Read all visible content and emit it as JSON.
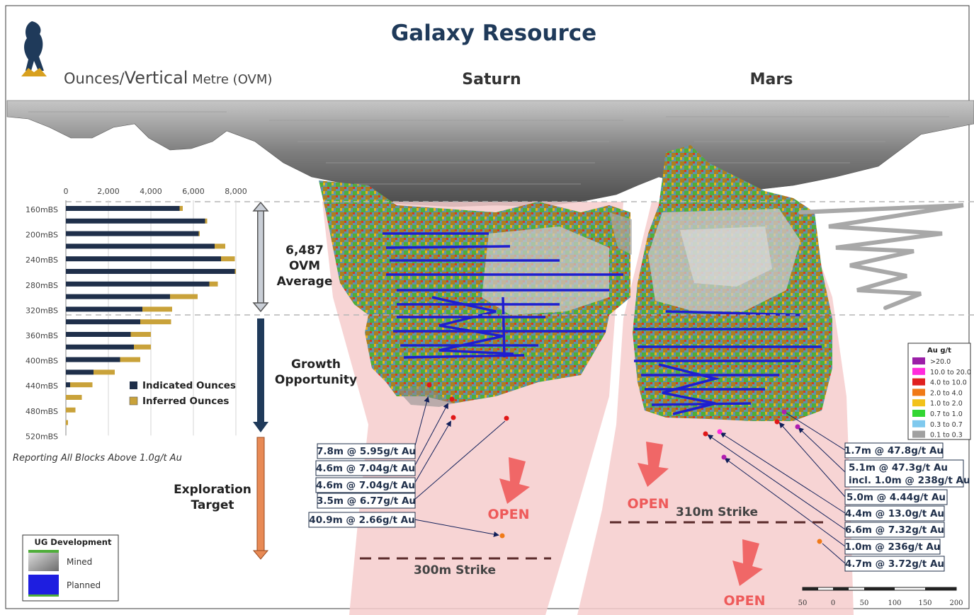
{
  "header": {
    "title": "Galaxy Resource",
    "subtitle_part1": "Ounces/",
    "subtitle_part2": "Vertical",
    "subtitle_part3": " Metre (OVM)",
    "deposit_left": "Saturn",
    "deposit_right": "Mars"
  },
  "chart_data": {
    "type": "bar",
    "orientation": "horizontal",
    "stacked": true,
    "xlim": [
      0,
      8000
    ],
    "xticks": [
      "0",
      "2,000",
      "4,000",
      "6,000",
      "8,000"
    ],
    "depth_labels": [
      "160mBS",
      "200mBS",
      "240mBS",
      "280mBS",
      "320mBS",
      "360mBS",
      "400mBS",
      "440mBS",
      "480mBS",
      "520mBS"
    ],
    "series": [
      {
        "name": "Indicated Ounces",
        "color": "#1f2f4a",
        "values": [
          5350,
          6550,
          6250,
          7000,
          7300,
          7950,
          6750,
          4900,
          3600,
          3500,
          3050,
          3200,
          2550,
          1300,
          200,
          0,
          0,
          0
        ]
      },
      {
        "name": "Inferred Ounces",
        "color": "#c9a23a",
        "values": [
          150,
          100,
          50,
          500,
          650,
          50,
          400,
          1300,
          1400,
          1450,
          950,
          800,
          950,
          1000,
          1050,
          750,
          450,
          100
        ]
      }
    ],
    "footnote": "Reporting All Blocks Above 1.0g/t Au"
  },
  "annotations": {
    "ovm_value": "6,487",
    "ovm_unit": "OVM",
    "ovm_avg": "Average",
    "growth_1": "Growth",
    "growth_2": "Opportunity",
    "explore_1": "Exploration",
    "explore_2": "Target",
    "open_label": "OPEN",
    "strike_saturn": "300m Strike",
    "strike_mars": "310m Strike"
  },
  "saturn_intercepts": [
    "7.8m @ 5.95g/t Au",
    "4.6m @ 7.04g/t Au",
    "4.6m @ 7.04g/t Au",
    "3.5m @ 6.77g/t Au",
    "40.9m @ 2.66g/t Au"
  ],
  "mars_intercepts": {
    "i1": "1.7m @ 47.8g/t Au",
    "i2a": "5.1m @ 47.3g/t Au",
    "i2b": "incl. 1.0m @ 238g/t Au",
    "i3": "5.0m @ 4.44g/t Au",
    "i4": "4.4m @ 13.0g/t Au",
    "i5": "6.6m @ 7.32g/t Au",
    "i6": "1.0m @ 236g/t Au",
    "i7": "4.7m @ 3.72g/t Au"
  },
  "grade_legend": {
    "title": "Au g/t",
    "items": [
      {
        "label": ">20.0",
        "color": "#9b1fa8"
      },
      {
        "label": "10.0 to 20.0",
        "color": "#ff2bdc"
      },
      {
        "label": "4.0 to 10.0",
        "color": "#e02020"
      },
      {
        "label": "2.0 to 4.0",
        "color": "#f07a18"
      },
      {
        "label": "1.0 to 2.0",
        "color": "#f2c21a"
      },
      {
        "label": "0.7 to 1.0",
        "color": "#33d633"
      },
      {
        "label": "0.3 to 0.7",
        "color": "#7fc9ee"
      },
      {
        "label": "0.1 to 0.3",
        "color": "#a0a0a0"
      }
    ]
  },
  "ug_legend": {
    "title": "UG Development",
    "mined": "Mined",
    "planned": "Planned"
  },
  "scale_bar": {
    "labels": [
      "50",
      "0",
      "50",
      "100",
      "150",
      "200"
    ]
  }
}
